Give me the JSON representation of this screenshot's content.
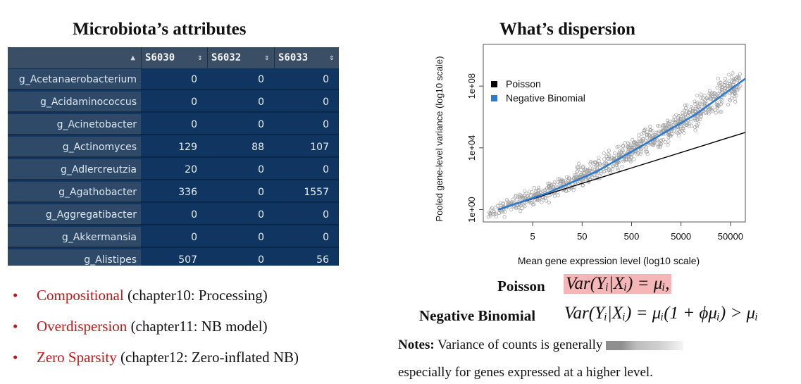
{
  "left_title": "Microbiota’s attributes",
  "right_title": "What’s dispersion",
  "table": {
    "columns": [
      "S6030",
      "S6032",
      "S6033"
    ],
    "rows": [
      {
        "name": "g_Acetanaerobacterium",
        "values": [
          "0",
          "0",
          "0"
        ]
      },
      {
        "name": "g_Acidaminococcus",
        "values": [
          "0",
          "0",
          "0"
        ]
      },
      {
        "name": "g_Acinetobacter",
        "values": [
          "0",
          "0",
          "0"
        ]
      },
      {
        "name": "g_Actinomyces",
        "values": [
          "129",
          "88",
          "107"
        ]
      },
      {
        "name": "g_Adlercreutzia",
        "values": [
          "20",
          "0",
          "0"
        ]
      },
      {
        "name": "g_Agathobacter",
        "values": [
          "336",
          "0",
          "1557"
        ]
      },
      {
        "name": "g_Aggregatibacter",
        "values": [
          "0",
          "0",
          "0"
        ]
      },
      {
        "name": "g_Akkermansia",
        "values": [
          "0",
          "0",
          "0"
        ]
      },
      {
        "name": "g_Alistipes",
        "values": [
          "507",
          "0",
          "56"
        ]
      }
    ]
  },
  "bullets": [
    {
      "term": "Compositional",
      "rest": " (chapter10: Processing)"
    },
    {
      "term": "Overdispersion",
      "rest": " (chapter11: NB model)"
    },
    {
      "term": "Zero Sparsity",
      "rest": " (chapter12: Zero-inflated NB)"
    }
  ],
  "chart_data": {
    "type": "scatter",
    "xlabel": "Mean gene expression level (log10 scale)",
    "ylabel": "Pooled gene-level variance (log10 scale)",
    "x_ticks": [
      "5",
      "50",
      "500",
      "5000",
      "50000"
    ],
    "x_tick_values": [
      5,
      50,
      500,
      5000,
      50000
    ],
    "y_ticks": [
      "1e+00",
      "1e+04",
      "1e+08"
    ],
    "y_tick_values": [
      1,
      10000,
      100000000
    ],
    "xlim_log10": [
      -0.3,
      5.0
    ],
    "ylim_log10": [
      -0.8,
      10.7
    ],
    "legend": [
      "Poisson",
      "Negative Binomial"
    ],
    "legend_position": "top-left",
    "series": [
      {
        "name": "Poisson",
        "color": "#000000",
        "x": [
          1,
          100000
        ],
        "y": [
          1,
          100000
        ]
      },
      {
        "name": "Negative Binomial",
        "color": "#2b7bd0",
        "x": [
          1,
          10,
          100,
          1000,
          10000,
          100000
        ],
        "y": [
          1,
          12,
          300,
          20000,
          1500000,
          300000000
        ]
      }
    ],
    "points_color": "#9e9e9e"
  },
  "poisson_label": "Poisson",
  "poisson_formula": "Var(Yᵢ|Xᵢ) = μᵢ,",
  "nb_label": "Negative Binomial",
  "nb_formula": "Var(Yᵢ|Xᵢ) = μᵢ(1 + ϕμᵢ) > μᵢ",
  "notes_label": "Notes:",
  "notes_text": " Variance of counts is generally",
  "notes_line2": "especially for genes expressed at a higher level.",
  "colors": {
    "accent_red": "#c0171b",
    "formula_highlight": "#f4b6b6"
  }
}
